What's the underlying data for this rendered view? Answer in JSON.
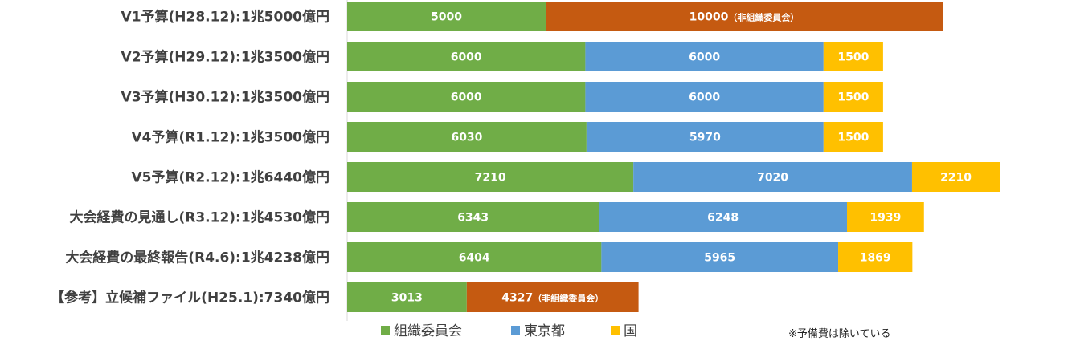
{
  "chart_data": {
    "type": "bar",
    "orientation": "horizontal",
    "stacked": true,
    "categories": [
      "V1予算(H28.12):1兆5000億円",
      "V2予算(H29.12):1兆3500億円",
      "V3予算(H30.12):1兆3500億円",
      "V4予算(R1.12):1兆3500億円",
      "V5予算(R2.12):1兆6440億円",
      "大会経費の見通し(R3.12):1兆4530億円",
      "大会経費の最終報告(R4.6):1兆4238億円",
      "【参考】立候補ファイル(H25.1):7340億円"
    ],
    "series": [
      {
        "name": "組織委員会",
        "color": "#70ad47",
        "values": [
          5000,
          6000,
          6000,
          6030,
          7210,
          6343,
          6404,
          3013
        ]
      },
      {
        "name": "東京都",
        "color": "#5b9bd5",
        "values": [
          0,
          6000,
          6000,
          5970,
          7020,
          6248,
          5965,
          0
        ]
      },
      {
        "name": "国",
        "color": "#ffc000",
        "values": [
          0,
          1500,
          1500,
          1500,
          2210,
          1939,
          1869,
          0
        ]
      },
      {
        "color": "#c55a11",
        "values": [
          10000,
          0,
          0,
          0,
          0,
          0,
          0,
          4327
        ],
        "note": "（非組織委員会）"
      }
    ],
    "xlim": [
      0,
      16440
    ],
    "legend": [
      "組織委員会",
      "東京都",
      "国"
    ],
    "legend_position": "bottom",
    "grid": false,
    "footnote": "※予備費は除いている"
  }
}
